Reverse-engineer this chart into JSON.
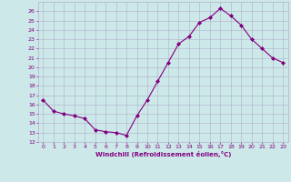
{
  "x": [
    0,
    1,
    2,
    3,
    4,
    5,
    6,
    7,
    8,
    9,
    10,
    11,
    12,
    13,
    14,
    15,
    16,
    17,
    18,
    19,
    20,
    21,
    22,
    23
  ],
  "y": [
    16.5,
    15.3,
    15.0,
    14.8,
    14.5,
    13.3,
    13.1,
    13.0,
    12.7,
    14.8,
    16.5,
    18.5,
    20.5,
    22.5,
    23.3,
    24.8,
    25.3,
    26.3,
    25.5,
    24.5,
    23.0,
    22.0,
    21.0,
    20.5
  ],
  "line_color": "#800080",
  "marker": "D",
  "marker_size": 2.0,
  "bg_color": "#cde8e8",
  "grid_color": "#b0b0cc",
  "xlabel": "Windchill (Refroidissement éolien,°C)",
  "xlabel_color": "#800080",
  "tick_color": "#800080",
  "ylim": [
    12,
    27
  ],
  "xlim": [
    -0.5,
    23.5
  ],
  "yticks": [
    12,
    13,
    14,
    15,
    16,
    17,
    18,
    19,
    20,
    21,
    22,
    23,
    24,
    25,
    26
  ],
  "xticks": [
    0,
    1,
    2,
    3,
    4,
    5,
    6,
    7,
    8,
    9,
    10,
    11,
    12,
    13,
    14,
    15,
    16,
    17,
    18,
    19,
    20,
    21,
    22,
    23
  ],
  "xtick_labels": [
    "0",
    "1",
    "2",
    "3",
    "4",
    "5",
    "6",
    "7",
    "8",
    "9",
    "10",
    "11",
    "12",
    "13",
    "14",
    "15",
    "16",
    "17",
    "18",
    "19",
    "20",
    "21",
    "22",
    "23"
  ]
}
